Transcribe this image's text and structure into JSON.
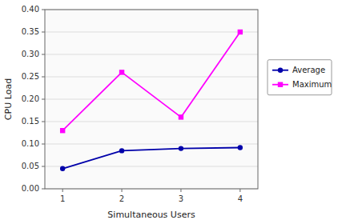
{
  "chart_data": {
    "type": "line",
    "xlabel": "Simultaneous Users",
    "ylabel": "CPU Load",
    "x": [
      1,
      2,
      3,
      4
    ],
    "series": [
      {
        "name": "Average",
        "color": "#0000AA",
        "marker": "circle",
        "values": [
          0.045,
          0.085,
          0.09,
          0.092
        ]
      },
      {
        "name": "Maximum",
        "color": "#FF00FF",
        "marker": "square",
        "values": [
          0.13,
          0.26,
          0.16,
          0.35
        ]
      }
    ],
    "xlim": [
      0.7,
      4.3
    ],
    "ylim": [
      0,
      0.4
    ],
    "xticks": [
      1,
      2,
      3,
      4
    ],
    "yticks": [
      {
        "value": 0,
        "label": "0.00"
      },
      0.05,
      {
        "value": 0.1,
        "label": "0.10"
      },
      0.15,
      {
        "value": 0.2,
        "label": "0.20"
      },
      0.25,
      {
        "value": 0.3,
        "label": "0.30"
      },
      0.35,
      {
        "value": 0.4,
        "label": "0.40"
      }
    ],
    "grid": "y",
    "legend": "right"
  }
}
